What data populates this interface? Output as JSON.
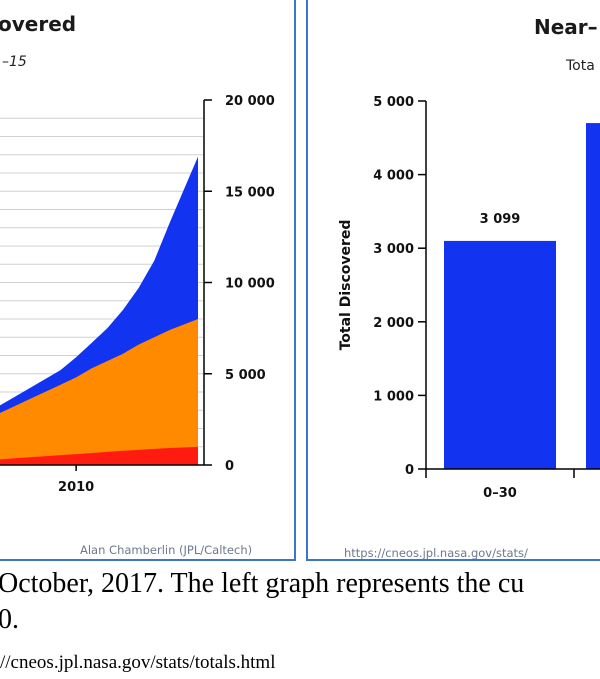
{
  "left_chart": {
    "title_partial": "overed",
    "subtitle_partial": "–15",
    "credit": "Alan Chamberlin (JPL/Caltech)"
  },
  "right_chart": {
    "title_partial": "Near–",
    "subtitle_partial": "Tota",
    "credit": "https://cneos.jpl.nasa.gov/stats/"
  },
  "caption": {
    "line1": "October, 2017. The left graph represents the cu",
    "line2": "0.",
    "source": "//cneos.jpl.nasa.gov/stats/totals.html"
  },
  "chart_data": [
    {
      "type": "area",
      "title": "",
      "xlabel": "",
      "ylabel": "",
      "x_ticks": [
        2010
      ],
      "ylim": [
        0,
        20000
      ],
      "y_ticks": [
        0,
        5000,
        10000,
        15000,
        20000
      ],
      "y_tick_labels": [
        "0",
        "5 000",
        "10 000",
        "15 000",
        "20 000"
      ],
      "y_axis_side": "right",
      "x": [
        2005,
        2006,
        2007,
        2008,
        2009,
        2010,
        2011,
        2012,
        2013,
        2014,
        2015,
        2016,
        2017.8
      ],
      "series": [
        {
          "color": "#ff1b10",
          "values": [
            300,
            360,
            420,
            480,
            540,
            600,
            660,
            720,
            780,
            830,
            880,
            930,
            990
          ]
        },
        {
          "color": "#ff8a00",
          "values": [
            2800,
            3200,
            3600,
            4000,
            4400,
            4800,
            5300,
            5700,
            6100,
            6600,
            7000,
            7400,
            8000
          ]
        },
        {
          "color": "#1233f0",
          "values": [
            3200,
            3700,
            4200,
            4700,
            5200,
            5900,
            6700,
            7500,
            8500,
            9700,
            11200,
            13300,
            16900
          ]
        }
      ],
      "stacking": "overlapping"
    },
    {
      "type": "bar",
      "title": "",
      "xlabel": "",
      "ylabel": "Total Discovered",
      "ylim": [
        0,
        5000
      ],
      "y_ticks": [
        0,
        1000,
        2000,
        3000,
        4000,
        5000
      ],
      "y_tick_labels": [
        "0",
        "1 000",
        "2 000",
        "3 000",
        "4 000",
        "5 000"
      ],
      "categories": [
        "0–30",
        ""
      ],
      "values": [
        3099,
        4700
      ],
      "data_labels": [
        "3 099",
        ""
      ],
      "color": "#1233f0"
    }
  ]
}
